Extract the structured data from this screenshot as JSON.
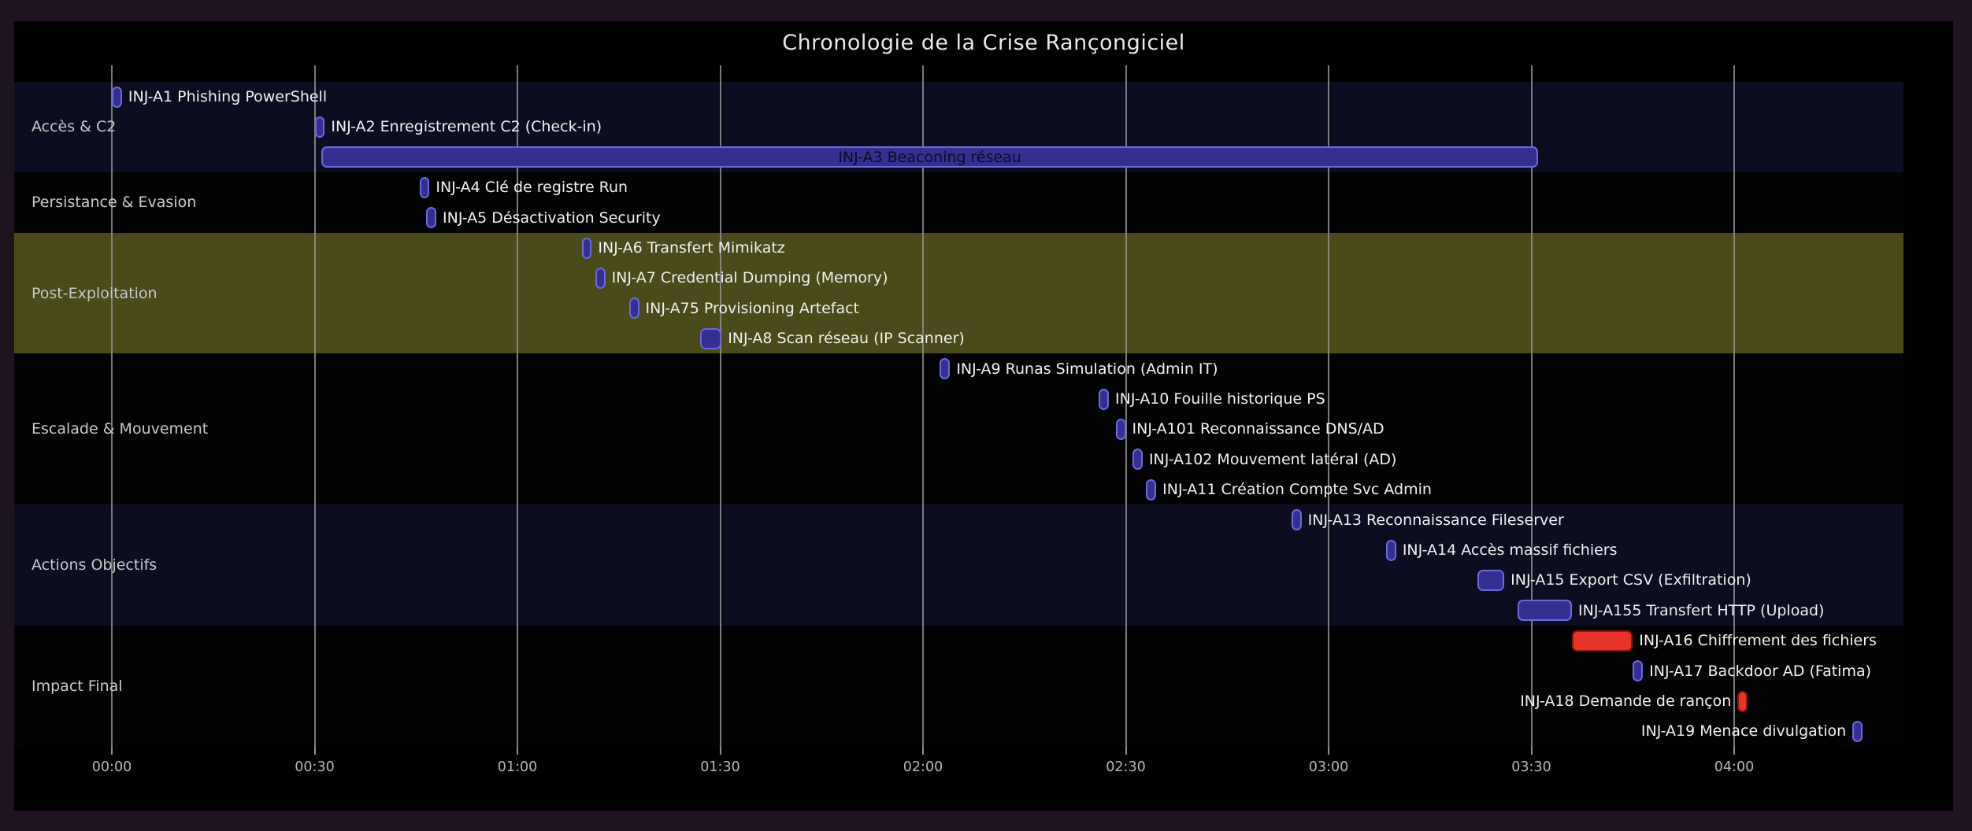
{
  "title": "Chronologie de la Crise Rançongiciel",
  "colors": {
    "outer_bg": "#1d1420",
    "figure_bg": "#000000",
    "band_navy": "#0d0d22",
    "band_dark": "#030306",
    "band_olive": "#4a4a1a",
    "gridline": "#8f8f8f",
    "bar_blue_fill": "#343092",
    "bar_blue_border": "#6c69d8",
    "bar_red_fill": "#e63528",
    "bar_red_border": "#8e150c",
    "task_label": "#f0f0f0",
    "inside_label": "#0b0b20",
    "category_label": "#c9c9c9",
    "tick_label": "#b5b5b5",
    "title_color": "#e8e8e8"
  },
  "chart_data": {
    "type": "gantt",
    "title": "Chronologie de la Crise Rançongiciel",
    "xlabel": "",
    "ylabel": "",
    "grid": "vertical",
    "time_axis": {
      "ticks": [
        "00:00",
        "00:30",
        "01:00",
        "01:30",
        "02:00",
        "02:30",
        "03:00",
        "03:30",
        "04:00"
      ],
      "tick_minutes": [
        0,
        30,
        60,
        90,
        120,
        150,
        180,
        210,
        240
      ],
      "range_min": [
        -14.5,
        265
      ]
    },
    "categories": [
      {
        "label": "Accès & C2",
        "band": "navy",
        "rows": 3
      },
      {
        "label": "Persistance & Evasion",
        "band": "dark",
        "rows": 2
      },
      {
        "label": "Post-Exploitation",
        "band": "olive",
        "rows": 4
      },
      {
        "label": "Escalade & Mouvement",
        "band": "dark",
        "rows": 5
      },
      {
        "label": "Actions Objectifs",
        "band": "navy",
        "rows": 4
      },
      {
        "label": "Impact Final",
        "band": "dark",
        "rows": 4
      }
    ],
    "tasks": [
      {
        "label": "INJ-A1 Phishing PowerShell",
        "start": "00:00",
        "start_min": 0,
        "duration_min": 1.5,
        "color": "blue",
        "label_side": "right"
      },
      {
        "label": "INJ-A2 Enregistrement C2 (Check-in)",
        "start": "00:30",
        "start_min": 30,
        "duration_min": 1.5,
        "color": "blue",
        "label_side": "right"
      },
      {
        "label": "INJ-A3 Beaconing réseau",
        "start": "00:31",
        "start_min": 31,
        "duration_min": 180,
        "color": "blue",
        "label_side": "inside"
      },
      {
        "label": "INJ-A4 Clé de registre Run",
        "start": "00:45",
        "start_min": 45.5,
        "duration_min": 1.5,
        "color": "blue",
        "label_side": "right"
      },
      {
        "label": "INJ-A5 Désactivation Security",
        "start": "00:46",
        "start_min": 46.5,
        "duration_min": 1.5,
        "color": "blue",
        "label_side": "right"
      },
      {
        "label": "INJ-A6 Transfert Mimikatz",
        "start": "01:10",
        "start_min": 69.5,
        "duration_min": 1.5,
        "color": "blue",
        "label_side": "right"
      },
      {
        "label": "INJ-A7 Credential Dumping (Memory)",
        "start": "01:12",
        "start_min": 71.5,
        "duration_min": 1.5,
        "color": "blue",
        "label_side": "right"
      },
      {
        "label": "INJ-A75 Provisioning Artefact",
        "start": "01:17",
        "start_min": 76.5,
        "duration_min": 1.5,
        "color": "blue",
        "label_side": "right"
      },
      {
        "label": "INJ-A8 Scan réseau (IP Scanner)",
        "start": "01:27",
        "start_min": 87,
        "duration_min": 3.2,
        "color": "blue",
        "label_side": "right"
      },
      {
        "label": "INJ-A9 Runas Simulation (Admin IT)",
        "start": "02:02",
        "start_min": 122.5,
        "duration_min": 1.5,
        "color": "blue",
        "label_side": "right"
      },
      {
        "label": "INJ-A10 Fouille historique PS",
        "start": "02:26",
        "start_min": 146,
        "duration_min": 1.5,
        "color": "blue",
        "label_side": "right"
      },
      {
        "label": "INJ-A101 Reconnaissance DNS/AD",
        "start": "02:28",
        "start_min": 148.5,
        "duration_min": 1.5,
        "color": "blue",
        "label_side": "right"
      },
      {
        "label": "INJ-A102 Mouvement latéral (AD)",
        "start": "02:31",
        "start_min": 151,
        "duration_min": 1.5,
        "color": "blue",
        "label_side": "right"
      },
      {
        "label": "INJ-A11 Création Compte Svc Admin",
        "start": "02:33",
        "start_min": 153,
        "duration_min": 1.5,
        "color": "blue",
        "label_side": "right"
      },
      {
        "label": "INJ-A13 Reconnaissance Fileserver",
        "start": "02:54",
        "start_min": 174.5,
        "duration_min": 1.5,
        "color": "blue",
        "label_side": "right"
      },
      {
        "label": "INJ-A14 Accès massif fichiers",
        "start": "03:08",
        "start_min": 188.5,
        "duration_min": 1.5,
        "color": "blue",
        "label_side": "right"
      },
      {
        "label": "INJ-A15 Export CSV (Exfiltration)",
        "start": "03:22",
        "start_min": 202,
        "duration_min": 4,
        "color": "blue",
        "label_side": "right"
      },
      {
        "label": "INJ-A155 Transfert HTTP (Upload)",
        "start": "03:28",
        "start_min": 208,
        "duration_min": 8,
        "color": "blue",
        "label_side": "right"
      },
      {
        "label": "INJ-A16 Chiffrement des fichiers",
        "start": "03:36",
        "start_min": 216,
        "duration_min": 9,
        "color": "red",
        "label_side": "right"
      },
      {
        "label": "INJ-A17 Backdoor AD (Fatima)",
        "start": "03:45",
        "start_min": 225,
        "duration_min": 1.5,
        "color": "blue",
        "label_side": "right"
      },
      {
        "label": "INJ-A18 Demande de rançon",
        "start": "04:00",
        "start_min": 240.5,
        "duration_min": 1.5,
        "color": "red",
        "label_side": "left"
      },
      {
        "label": "INJ-A19 Menace divulgation",
        "start": "04:17",
        "start_min": 257.5,
        "duration_min": 1.5,
        "color": "blue",
        "label_side": "left"
      }
    ]
  }
}
